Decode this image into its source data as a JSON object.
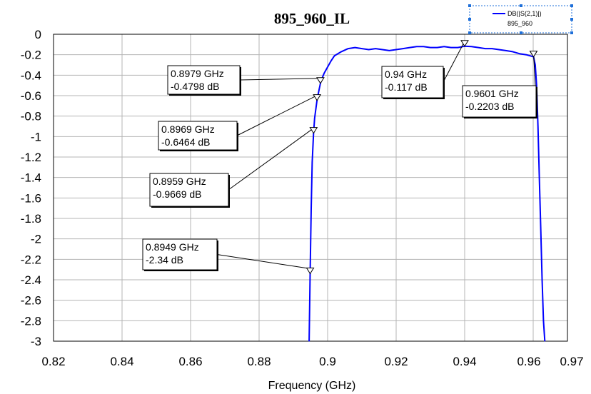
{
  "chart_data": {
    "type": "line",
    "title": "895_960_IL",
    "xlabel": "Frequency (GHz)",
    "ylabel": "",
    "xlim": [
      0.82,
      0.97
    ],
    "ylim": [
      -3,
      0
    ],
    "grid": true,
    "x_ticks": [
      "0.82",
      "0.84",
      "0.86",
      "0.88",
      "0.9",
      "0.92",
      "0.94",
      "0.96",
      "0.97"
    ],
    "y_ticks": [
      "0",
      "-0.2",
      "-0.4",
      "-0.6",
      "-0.8",
      "-1",
      "-1.2",
      "-1.4",
      "-1.6",
      "-1.8",
      "-2",
      "-2.2",
      "-2.4",
      "-2.6",
      "-2.8",
      "-3"
    ],
    "legend": {
      "position": "top-right",
      "entries": [
        {
          "label": "DB(|S(2,1)|)",
          "sublabel": "895_960",
          "color": "#0000ff"
        }
      ]
    },
    "series": [
      {
        "name": "DB(|S(2,1)|)",
        "color": "#0000ff",
        "x": [
          0.8946,
          0.8949,
          0.8952,
          0.8955,
          0.8959,
          0.8962,
          0.8966,
          0.8969,
          0.8974,
          0.8979,
          0.8985,
          0.899,
          0.9,
          0.901,
          0.902,
          0.904,
          0.906,
          0.908,
          0.91,
          0.912,
          0.914,
          0.916,
          0.918,
          0.92,
          0.922,
          0.924,
          0.926,
          0.928,
          0.93,
          0.932,
          0.934,
          0.936,
          0.938,
          0.94,
          0.942,
          0.944,
          0.946,
          0.948,
          0.95,
          0.952,
          0.954,
          0.956,
          0.958,
          0.959,
          0.9601,
          0.9606,
          0.961,
          0.9614,
          0.9618,
          0.9622,
          0.9626,
          0.963,
          0.9634
        ],
        "y": [
          -3.0,
          -2.34,
          -1.7,
          -1.25,
          -0.9669,
          -0.82,
          -0.72,
          -0.6464,
          -0.56,
          -0.4798,
          -0.42,
          -0.38,
          -0.32,
          -0.26,
          -0.21,
          -0.17,
          -0.14,
          -0.13,
          -0.14,
          -0.15,
          -0.14,
          -0.15,
          -0.16,
          -0.15,
          -0.14,
          -0.13,
          -0.12,
          -0.12,
          -0.13,
          -0.13,
          -0.12,
          -0.13,
          -0.13,
          -0.117,
          -0.12,
          -0.13,
          -0.14,
          -0.14,
          -0.15,
          -0.16,
          -0.17,
          -0.19,
          -0.2,
          -0.21,
          -0.2203,
          -0.3,
          -0.5,
          -0.9,
          -1.4,
          -1.9,
          -2.4,
          -2.8,
          -3.0
        ]
      }
    ],
    "markers": [
      {
        "x": 0.8979,
        "y": -0.4798,
        "label_freq": "0.8979 GHz",
        "label_val": "-0.4798 dB"
      },
      {
        "x": 0.8969,
        "y": -0.6464,
        "label_freq": "0.8969 GHz",
        "label_val": "-0.6464 dB"
      },
      {
        "x": 0.8959,
        "y": -0.9669,
        "label_freq": "0.8959 GHz",
        "label_val": "-0.9669 dB"
      },
      {
        "x": 0.8949,
        "y": -2.34,
        "label_freq": "0.8949 GHz",
        "label_val": "-2.34 dB"
      },
      {
        "x": 0.94,
        "y": -0.117,
        "label_freq": "0.94 GHz",
        "label_val": "-0.117 dB"
      },
      {
        "x": 0.9601,
        "y": -0.2203,
        "label_freq": "0.9601 GHz",
        "label_val": "-0.2203 dB"
      }
    ]
  }
}
